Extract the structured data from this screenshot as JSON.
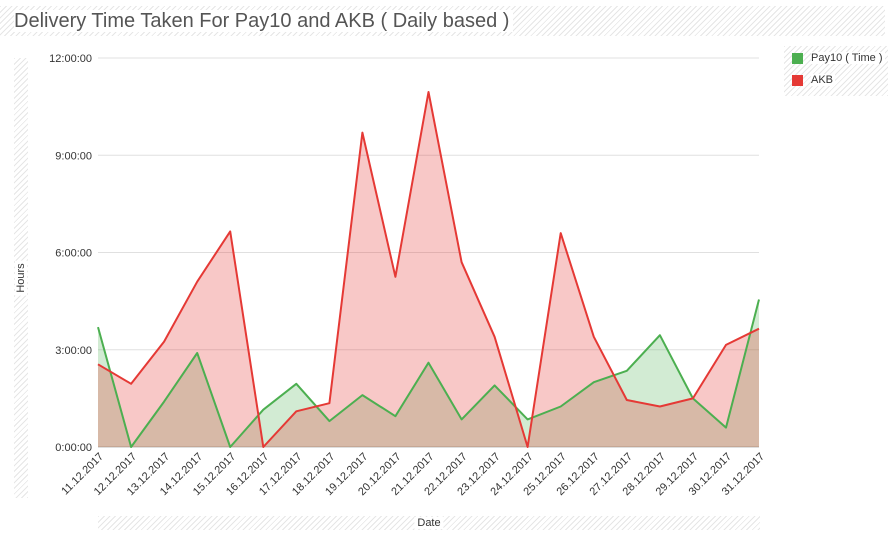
{
  "chart_data": {
    "type": "area",
    "title": "Delivery Time Taken For Pay10 and AKB ( Daily based )",
    "xlabel": "Date",
    "ylabel": "Hours",
    "ylim": [
      0,
      12
    ],
    "y_ticks": [
      {
        "value": 0,
        "label": "0:00:00"
      },
      {
        "value": 3,
        "label": "3:00:00"
      },
      {
        "value": 6,
        "label": "6:00:00"
      },
      {
        "value": 9,
        "label": "9:00:00"
      },
      {
        "value": 12,
        "label": "12:00:00"
      }
    ],
    "categories": [
      "11.12.2017",
      "12.12.2017",
      "13.12.2017",
      "14.12.2017",
      "15.12.2017",
      "16.12.2017",
      "17.12.2017",
      "18.12.2017",
      "19.12.2017",
      "20.12.2017",
      "21.12.2017",
      "22.12.2017",
      "23.12.2017",
      "24.12.2017",
      "25.12.2017",
      "26.12.2017",
      "27.12.2017",
      "28.12.2017",
      "29.12.2017",
      "30.12.2017",
      "31.12.2017"
    ],
    "series": [
      {
        "name": "Pay10 ( Time )",
        "color": "#4caf50",
        "fill": "rgba(76,175,80,0.25)",
        "values": [
          3.7,
          0,
          1.4,
          2.9,
          0,
          1.15,
          1.95,
          0.8,
          1.6,
          0.95,
          2.6,
          0.85,
          1.9,
          0.85,
          1.25,
          2.0,
          2.35,
          3.45,
          1.5,
          0.6,
          4.55
        ]
      },
      {
        "name": "AKB",
        "color": "#e53935",
        "fill": "rgba(229,57,53,0.28)",
        "values": [
          2.55,
          1.95,
          3.25,
          5.1,
          6.65,
          0,
          1.1,
          1.35,
          9.7,
          5.25,
          10.95,
          5.7,
          3.4,
          0,
          6.6,
          3.4,
          1.45,
          1.25,
          1.5,
          3.15,
          3.65
        ]
      }
    ],
    "legend_position": "top-right",
    "grid": true
  }
}
